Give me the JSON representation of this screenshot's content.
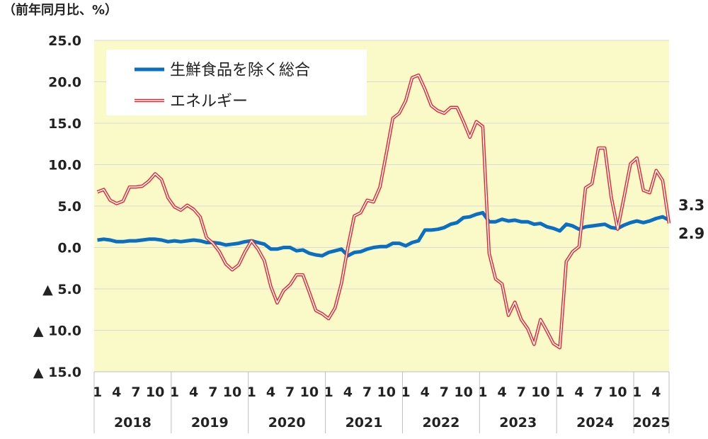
{
  "chart_data": {
    "type": "line",
    "unit_label": "（前年同月比、%）",
    "categories": [
      "1",
      null,
      null,
      "4",
      null,
      null,
      "7",
      null,
      null,
      "10",
      null,
      null,
      "1",
      null,
      null,
      "4",
      null,
      null,
      "7",
      null,
      null,
      "10",
      null,
      null,
      "1",
      null,
      null,
      "4",
      null,
      null,
      "7",
      null,
      null,
      "10",
      null,
      null,
      "1",
      null,
      null,
      "4",
      null,
      null,
      "7",
      null,
      null,
      "10",
      null,
      null,
      "1",
      null,
      null,
      "4",
      null,
      null,
      "7",
      null,
      null,
      "10",
      null,
      null,
      "1",
      null,
      null,
      "4",
      null,
      null,
      "7",
      null,
      null,
      "10",
      null,
      null,
      "1",
      null,
      null,
      "4",
      null,
      null,
      "7",
      null,
      null,
      "10",
      null,
      null,
      "1",
      null,
      null,
      "4",
      null,
      null
    ],
    "years": [
      "2018",
      "2019",
      "2020",
      "2021",
      "2022",
      "2023",
      "2024",
      "2025"
    ],
    "series": [
      {
        "name": "生鮮食品を除く総合",
        "color": "#0a6fc2",
        "style": "solid",
        "values": [
          0.9,
          1.0,
          0.9,
          0.7,
          0.7,
          0.8,
          0.8,
          0.9,
          1.0,
          1.0,
          0.9,
          0.7,
          0.8,
          0.7,
          0.8,
          0.9,
          0.8,
          0.6,
          0.6,
          0.5,
          0.3,
          0.4,
          0.5,
          0.7,
          0.8,
          0.6,
          0.4,
          -0.2,
          -0.2,
          0.0,
          0.0,
          -0.4,
          -0.3,
          -0.7,
          -0.9,
          -1.0,
          -0.6,
          -0.4,
          -0.2,
          -1.0,
          -0.6,
          -0.5,
          -0.2,
          0.0,
          0.1,
          0.1,
          0.5,
          0.5,
          0.2,
          0.6,
          0.8,
          2.1,
          2.1,
          2.2,
          2.4,
          2.8,
          3.0,
          3.6,
          3.7,
          4.0,
          4.2,
          3.1,
          3.1,
          3.4,
          3.2,
          3.3,
          3.1,
          3.1,
          2.8,
          2.9,
          2.5,
          2.3,
          2.0,
          2.8,
          2.6,
          2.2,
          2.5,
          2.6,
          2.7,
          2.8,
          2.4,
          2.3,
          2.7,
          3.0,
          3.2,
          3.0,
          3.2,
          3.5,
          3.7,
          3.3
        ]
      },
      {
        "name": "エネルギー",
        "color": "#e8262b",
        "style": "hollow",
        "values": [
          6.7,
          7.0,
          5.7,
          5.3,
          5.6,
          7.3,
          7.3,
          7.4,
          8.0,
          8.9,
          8.2,
          6.0,
          4.9,
          4.5,
          5.1,
          4.6,
          3.7,
          1.2,
          0.5,
          -0.5,
          -2.0,
          -2.7,
          -2.1,
          -0.5,
          0.8,
          -0.2,
          -1.6,
          -4.7,
          -6.7,
          -5.2,
          -4.5,
          -3.3,
          -3.3,
          -5.4,
          -7.6,
          -8.0,
          -8.6,
          -7.3,
          -4.3,
          0.0,
          3.8,
          4.2,
          5.7,
          5.5,
          7.3,
          11.4,
          15.6,
          16.2,
          17.7,
          20.5,
          20.8,
          19.1,
          17.1,
          16.5,
          16.2,
          16.9,
          16.9,
          15.2,
          13.3,
          15.2,
          14.6,
          -0.7,
          -3.8,
          -4.4,
          -8.2,
          -6.6,
          -8.7,
          -9.8,
          -11.7,
          -8.7,
          -10.1,
          -11.6,
          -12.1,
          -1.7,
          -0.5,
          0.1,
          7.2,
          7.7,
          12.0,
          12.0,
          6.1,
          2.2,
          6.1,
          10.1,
          10.8,
          6.9,
          6.6,
          9.3,
          8.1,
          2.9
        ]
      }
    ],
    "ylim": [
      -15,
      25
    ],
    "yticks": [
      {
        "value": -15,
        "label": "▲ 15.0"
      },
      {
        "value": -10,
        "label": "▲ 10.0"
      },
      {
        "value": -5,
        "label": "▲ 5.0"
      },
      {
        "value": 0,
        "label": "0.0"
      },
      {
        "value": 5,
        "label": "5.0"
      },
      {
        "value": 10,
        "label": "10.0"
      },
      {
        "value": 15,
        "label": "15.0"
      },
      {
        "value": 20,
        "label": "20.0"
      },
      {
        "value": 25,
        "label": "25.0"
      }
    ],
    "grid": true,
    "background": "#fafac8",
    "legend": "top-left"
  }
}
